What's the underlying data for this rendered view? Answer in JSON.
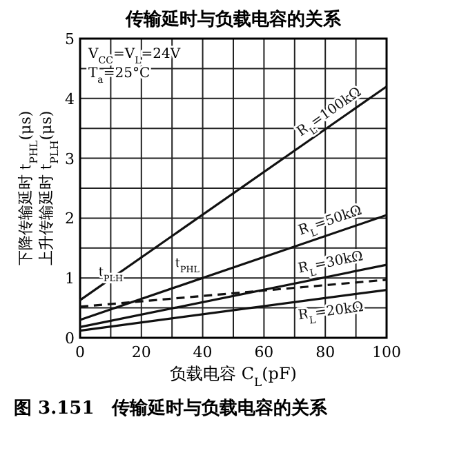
{
  "chart_data": {
    "type": "line",
    "title": "传输延时与负载电容的关系",
    "xlabel": "负载电容 C$_{L}$(pF)",
    "ylabel": "下降传输延时 t$_{PHL}$(μs)\n上升传输延时 t$_{PLH}$(μs)",
    "x": [
      0,
      100
    ],
    "series": [
      {
        "name": "R$_{L}$=100kΩ",
        "color": "#111111",
        "values": [
          0.63,
          4.2
        ]
      },
      {
        "name": "R$_{L}$=50kΩ",
        "color": "#111111",
        "values": [
          0.3,
          2.05
        ]
      },
      {
        "name": "R$_{L}$=30kΩ",
        "color": "#111111",
        "values": [
          0.18,
          1.22
        ]
      },
      {
        "name": "R$_{L}$=20kΩ",
        "color": "#111111",
        "values": [
          0.12,
          0.8
        ]
      },
      {
        "color": "#111111",
        "values": [
          0.52,
          0.97
        ],
        "line_style": "dashed"
      }
    ],
    "xlim": [
      0,
      100
    ],
    "ylim": [
      0,
      5
    ],
    "xticks": [
      0,
      20,
      40,
      60,
      80,
      100
    ],
    "yticks": [
      0,
      1,
      2,
      3,
      4,
      5
    ],
    "grid": true,
    "legend": false,
    "marker": "none",
    "line_style": "solid",
    "annotations": [
      "V$_{CC}$=V$_{L}$=24V",
      "T$_{a}$=25°C",
      {
        "text": "t$_{PLH}$",
        "x": 10,
        "y": 0.9
      },
      {
        "text": "t$_{PHL}$",
        "x": 35,
        "y": 1.05
      },
      "图 3.151　传输延时与负载电容的关系"
    ]
  }
}
